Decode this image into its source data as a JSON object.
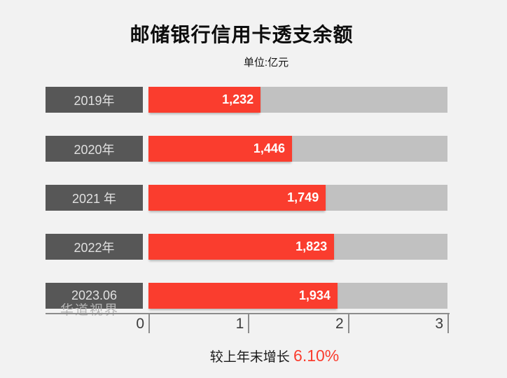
{
  "header": {
    "title": "邮储银行信用卡透支余额",
    "unit_label": "单位:亿元"
  },
  "watermark": "华道视界",
  "footer": {
    "prefix": "较上年末增长 ",
    "highlight": "6.10%"
  },
  "colors": {
    "background": "#f2f2f2",
    "bar_red": "#fa3d2e",
    "label_box": "#575757",
    "track_gray": "#c1c1c1",
    "axis_gray": "#8c8c8c",
    "accent_red": "#fa3d2e"
  },
  "chart_data": {
    "type": "bar",
    "orientation": "horizontal",
    "title": "邮储银行信用卡透支余额",
    "unit": "亿元",
    "categories": [
      "2019年",
      "2020年",
      "2021 年",
      "2022年",
      "2023.06"
    ],
    "values": [
      1232,
      1446,
      1749,
      1823,
      1934
    ],
    "value_labels": [
      "1,232",
      "1,446",
      "1,749",
      "1,823",
      "1,934"
    ],
    "bar_fractions": [
      0.375,
      0.48,
      0.593,
      0.621,
      0.632
    ],
    "xlim": [
      0,
      3000
    ],
    "x_ticks": [
      {
        "label": "0",
        "value": 0,
        "frac": 0
      },
      {
        "label": "1",
        "value": 1000,
        "frac": 0.3333
      },
      {
        "label": "2",
        "value": 2000,
        "frac": 0.6667
      },
      {
        "label": "3",
        "value": 3000,
        "frac": 1
      }
    ],
    "grid": false,
    "legend": false,
    "growth_note": "较上年末增长 6.10%"
  }
}
